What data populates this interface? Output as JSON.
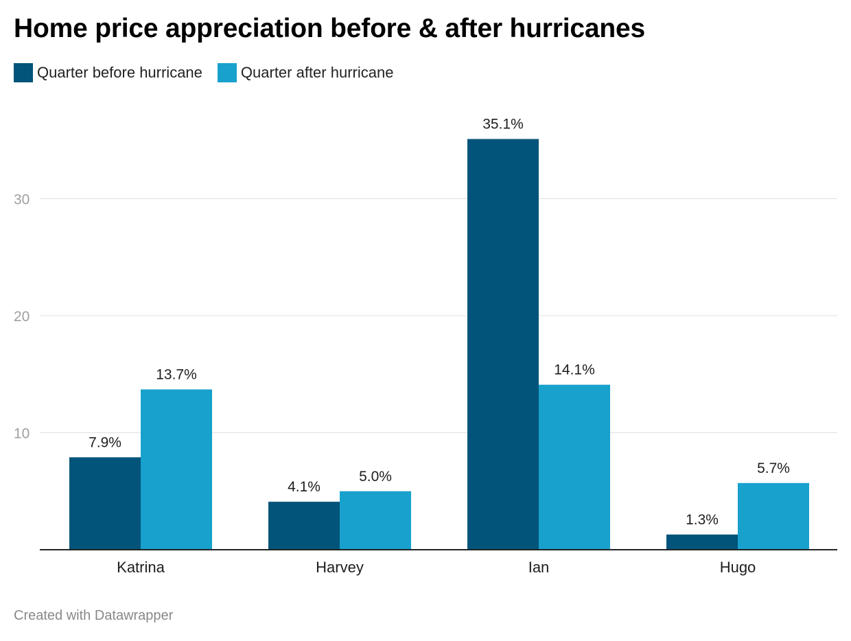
{
  "title": "Home price appreciation before & after hurricanes",
  "legend": {
    "items": [
      {
        "label": "Quarter before hurricane",
        "color": "#03547a"
      },
      {
        "label": "Quarter after hurricane",
        "color": "#18a1cd"
      }
    ]
  },
  "footer": "Created with Datawrapper",
  "chart_data": {
    "type": "bar",
    "categories": [
      "Katrina",
      "Harvey",
      "Ian",
      "Hugo"
    ],
    "series": [
      {
        "name": "Quarter before hurricane",
        "values": [
          7.9,
          4.1,
          35.1,
          1.3
        ],
        "labels": [
          "7.9%",
          "4.1%",
          "35.1%",
          "1.3%"
        ],
        "color": "#03547a"
      },
      {
        "name": "Quarter after hurricane",
        "values": [
          13.7,
          5.0,
          14.1,
          5.7
        ],
        "labels": [
          "13.7%",
          "5.0%",
          "14.1%",
          "5.7%"
        ],
        "color": "#18a1cd"
      }
    ],
    "y_ticks": [
      10,
      20,
      30
    ],
    "ylim": [
      0,
      38
    ],
    "grid": true,
    "legend_position": "top-left",
    "xlabel": "",
    "ylabel": ""
  }
}
